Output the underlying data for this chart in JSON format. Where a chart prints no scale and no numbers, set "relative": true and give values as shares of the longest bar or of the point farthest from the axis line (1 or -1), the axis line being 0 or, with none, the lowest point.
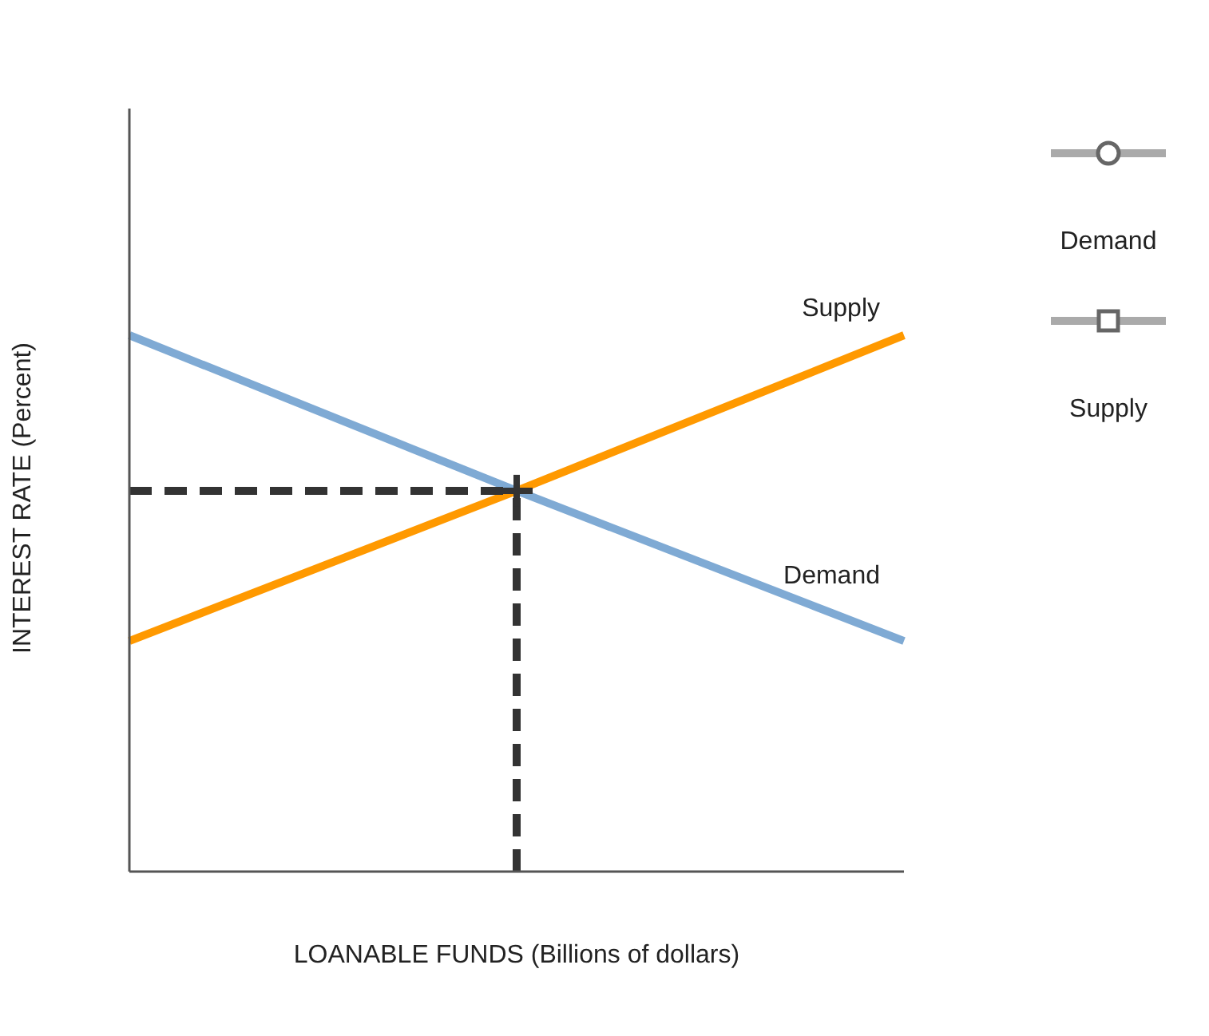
{
  "chart_data": {
    "type": "line",
    "relative": true,
    "xlabel": "LOANABLE FUNDS (Billions of dollars)",
    "ylabel": "INTEREST RATE (Percent)",
    "categories": [
      null,
      null,
      null
    ],
    "series": [
      {
        "name": "Demand",
        "color": "#7faad4",
        "values": [
          1,
          0.71,
          0.43
        ]
      },
      {
        "name": "Supply",
        "color": "#ff9900",
        "values": [
          0.43,
          0.71,
          1
        ]
      }
    ],
    "ref_lines": [
      {
        "axis": "y",
        "value": 0.71,
        "color": "#333333",
        "line_style": "dashed"
      }
    ],
    "legend": "right"
  }
}
